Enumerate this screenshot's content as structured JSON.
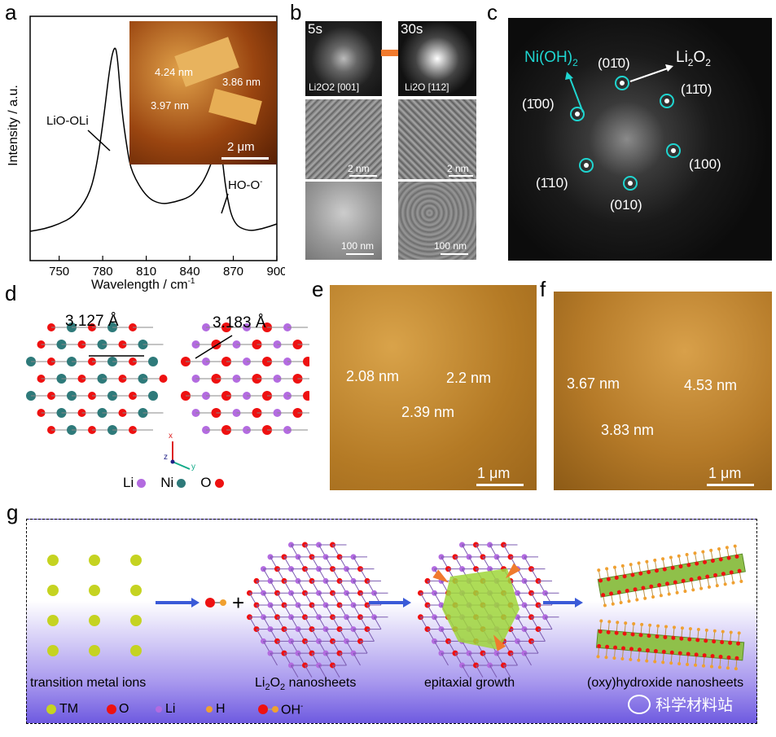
{
  "panels": {
    "a": {
      "label": "a",
      "ylabel": "Intensity / a.u.",
      "xlabel": "Wavelength / cm",
      "xlabel_sup": "-1",
      "peak1": "LiO-OLi",
      "peak2": "HO-O",
      "peak2_sup": "-",
      "inset": {
        "h1": "4.24 nm",
        "h2": "3.86 nm",
        "h3": "3.97 nm",
        "scale": "2 μm"
      }
    },
    "b": {
      "label": "b",
      "t1": "5s",
      "t2": "30s",
      "fft1": "Li2O2 [001]",
      "fft2": "Li2O [112]",
      "s1": "2 nm",
      "s2": "2 nm",
      "s3": "100 nm",
      "s4": "100 nm"
    },
    "c": {
      "label": "c",
      "ni": "Ni(OH)",
      "ni_sub": "2",
      "li": "Li",
      "li_sub": "2",
      "li_tail": "O",
      "li_sub2": "2",
      "spots": [
        "(01̄0)",
        "(11̄0)",
        "(1̄00)",
        "(100)",
        "(1̄10)",
        "(010)"
      ]
    },
    "d": {
      "label": "d",
      "d1": "3.127 Å",
      "d2": "3.183 Å",
      "legend": [
        "Li",
        "Ni",
        "O"
      ]
    },
    "e": {
      "label": "e",
      "h1": "2.08 nm",
      "h2": "2.2 nm",
      "h3": "2.39 nm",
      "scale": "1 μm"
    },
    "f": {
      "label": "f",
      "h1": "3.67 nm",
      "h2": "4.53 nm",
      "h3": "3.83 nm",
      "scale": "1 μm"
    },
    "g": {
      "label": "g",
      "steps": [
        "transition metal ions",
        "Li",
        "epitaxial growth",
        "(oxy)hydroxide nanosheets"
      ],
      "step2_sub": "2",
      "step2_mid": "O",
      "step2_sub2": "2",
      "step2_tail": " nanosheets",
      "legend": [
        "TM",
        "O",
        "Li",
        "H",
        "OH"
      ],
      "oh_sup": "-",
      "watermark": "科学材料站"
    }
  },
  "chart_data": {
    "type": "line",
    "title": "",
    "xlabel": "Wavelength / cm-1",
    "ylabel": "Intensity / a.u.",
    "xlim": [
      730,
      900
    ],
    "xticks": [
      750,
      780,
      810,
      840,
      870,
      900
    ],
    "series": [
      {
        "x": [
          730,
          740,
          750,
          760,
          770,
          775,
          780,
          785,
          788,
          790,
          793,
          797,
          800,
          810,
          820,
          830,
          840,
          845,
          850,
          855,
          858,
          860,
          862,
          865,
          870,
          880,
          890,
          900
        ],
        "y": [
          0.12,
          0.13,
          0.15,
          0.18,
          0.26,
          0.36,
          0.55,
          0.8,
          0.88,
          0.85,
          0.62,
          0.45,
          0.36,
          0.26,
          0.23,
          0.24,
          0.26,
          0.29,
          0.33,
          0.4,
          0.46,
          0.49,
          0.44,
          0.28,
          0.15,
          0.12,
          0.13,
          0.15
        ]
      }
    ]
  }
}
